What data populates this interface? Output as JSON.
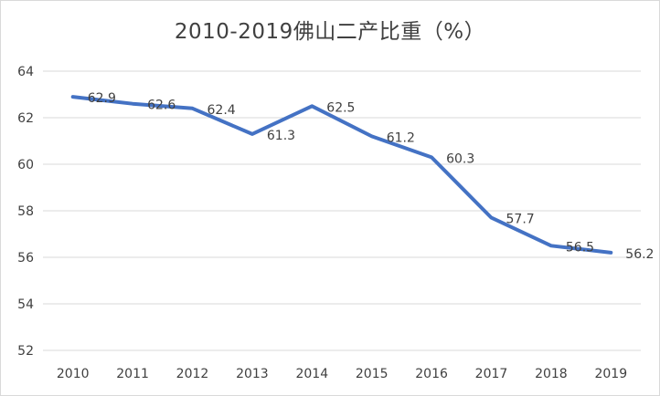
{
  "chart_data": {
    "type": "line",
    "title": "2010-2019佛山二产比重（%）",
    "xlabel": "",
    "ylabel": "",
    "categories": [
      "2010",
      "2011",
      "2012",
      "2013",
      "2014",
      "2015",
      "2016",
      "2017",
      "2018",
      "2019"
    ],
    "series": [
      {
        "values": [
          62.9,
          62.6,
          62.4,
          61.3,
          62.5,
          61.2,
          60.3,
          57.7,
          56.5,
          56.2
        ],
        "color": "#4472c4"
      }
    ],
    "ylim": [
      52,
      64
    ],
    "yticks": [
      52,
      54,
      56,
      58,
      60,
      62,
      64
    ],
    "grid": true,
    "data_labels": true,
    "legend": "none"
  }
}
